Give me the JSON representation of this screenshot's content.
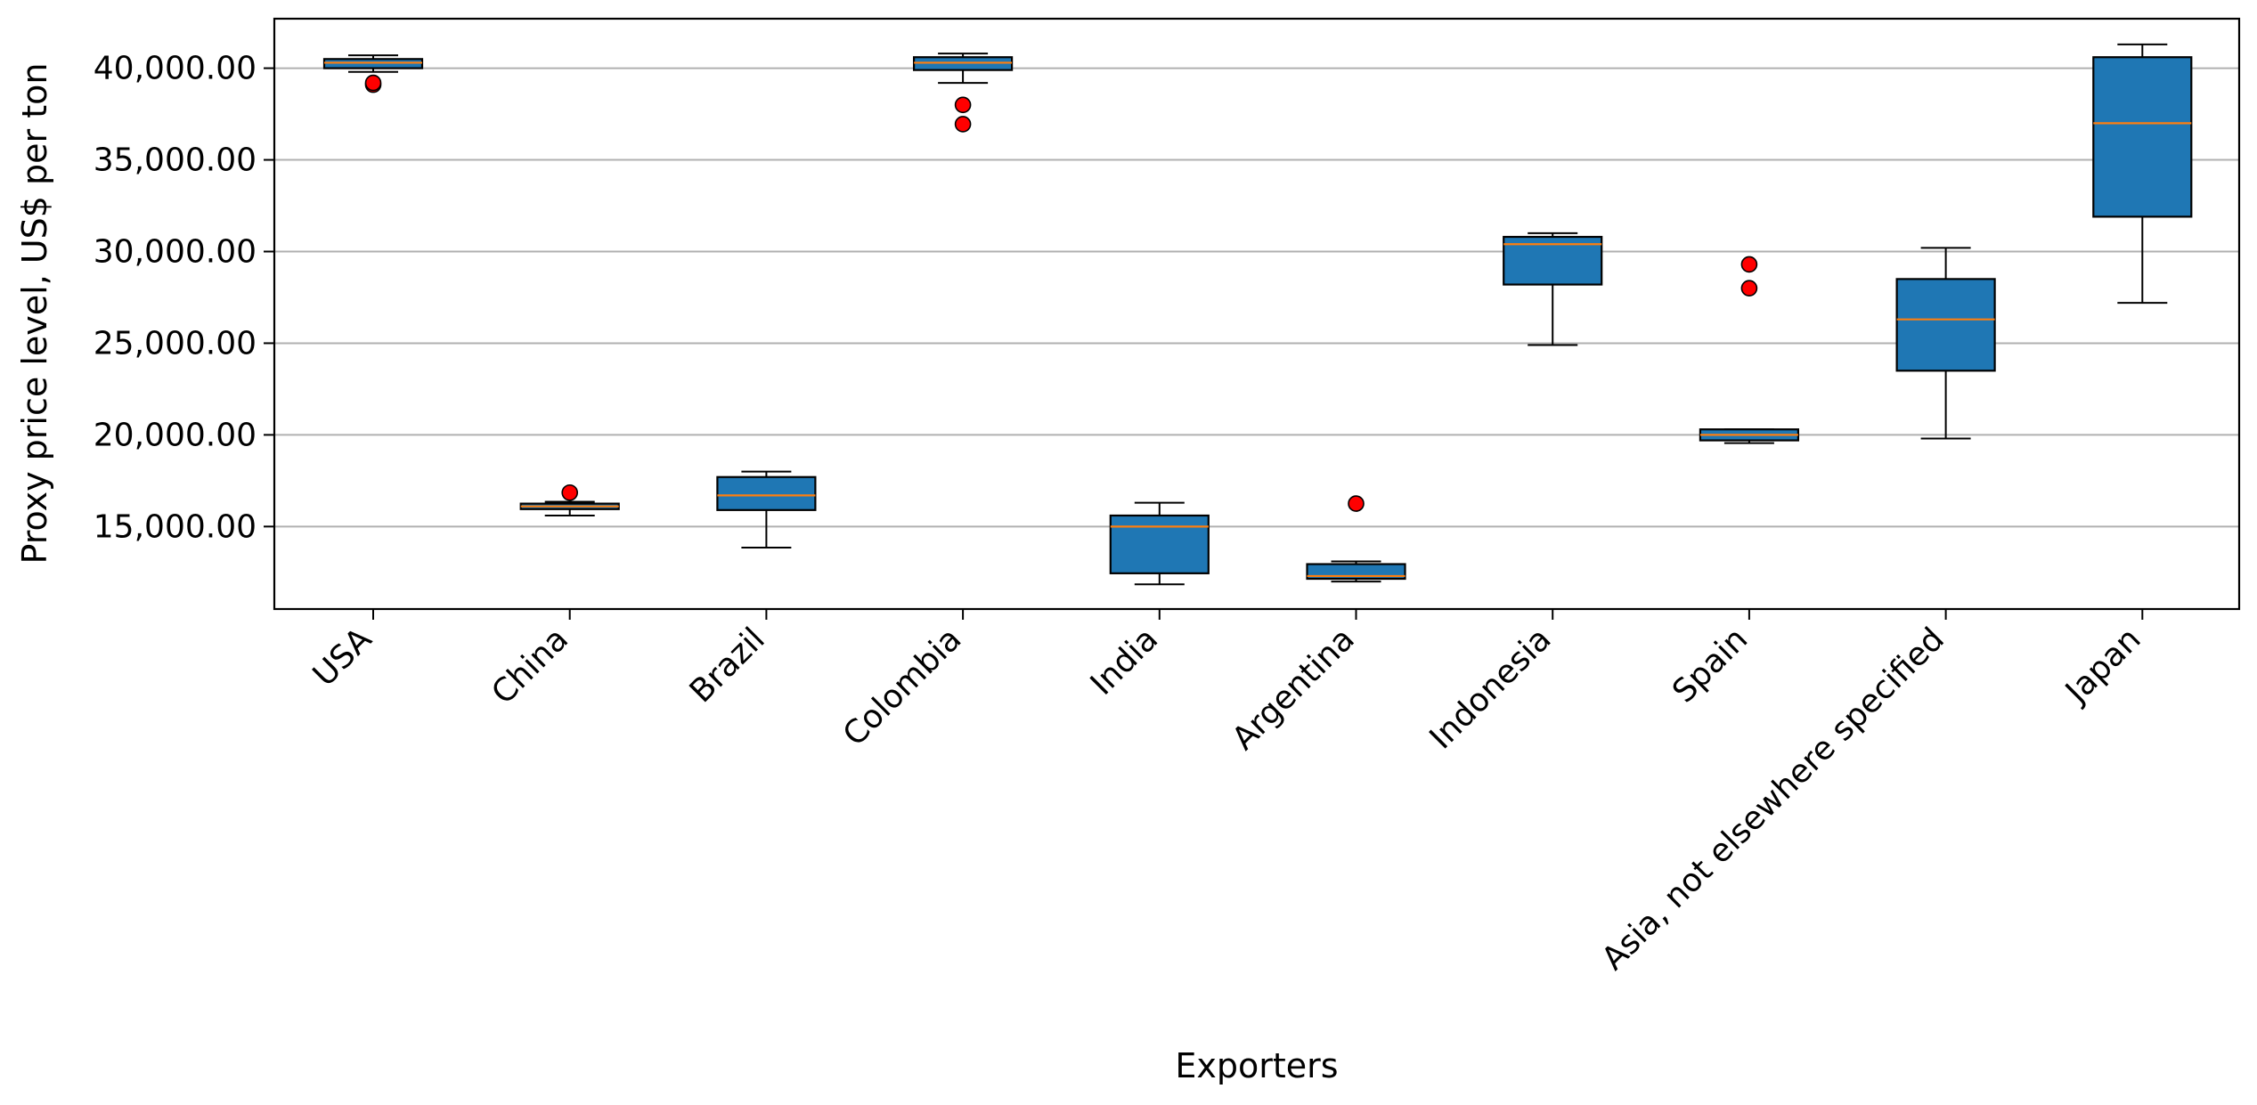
{
  "chart_data": {
    "type": "box",
    "xlabel": "Exporters",
    "ylabel": "Proxy price level, US$ per ton",
    "ylim": [
      10500,
      42700
    ],
    "yticks": [
      15000,
      20000,
      25000,
      30000,
      35000,
      40000
    ],
    "ytick_labels": [
      "15,000.00",
      "20,000.00",
      "25,000.00",
      "30,000.00",
      "35,000.00",
      "40,000.00"
    ],
    "grid": "horizontal",
    "colors": {
      "box": "#1f77b4",
      "median": "#ff7f0e",
      "outlier": "#ff0000",
      "grid": "#b0b0b0"
    },
    "categories": [
      "USA",
      "China",
      "Brazil",
      "Colombia",
      "India",
      "Argentina",
      "Indonesia",
      "Spain",
      "Asia, not elsewhere specified",
      "Japan"
    ],
    "boxes": [
      {
        "category": "USA",
        "whisker_low": 39800,
        "q1": 40000,
        "median": 40300,
        "q3": 40500,
        "whisker_high": 40700,
        "outliers": [
          39100,
          39200
        ]
      },
      {
        "category": "China",
        "whisker_low": 15600,
        "q1": 15950,
        "median": 16100,
        "q3": 16250,
        "whisker_high": 16350,
        "outliers": [
          16850
        ]
      },
      {
        "category": "Brazil",
        "whisker_low": 13850,
        "q1": 15900,
        "median": 16700,
        "q3": 17700,
        "whisker_high": 18000,
        "outliers": []
      },
      {
        "category": "Colombia",
        "whisker_low": 39200,
        "q1": 39900,
        "median": 40300,
        "q3": 40600,
        "whisker_high": 40800,
        "outliers": [
          38000,
          36950
        ]
      },
      {
        "category": "India",
        "whisker_low": 11850,
        "q1": 12450,
        "median": 15000,
        "q3": 15600,
        "whisker_high": 16300,
        "outliers": []
      },
      {
        "category": "Argentina",
        "whisker_low": 12000,
        "q1": 12150,
        "median": 12300,
        "q3": 12950,
        "whisker_high": 13100,
        "outliers": [
          16250
        ]
      },
      {
        "category": "Indonesia",
        "whisker_low": 24900,
        "q1": 28200,
        "median": 30400,
        "q3": 30800,
        "whisker_high": 31000,
        "outliers": []
      },
      {
        "category": "Spain",
        "whisker_low": 19550,
        "q1": 19700,
        "median": 20000,
        "q3": 20300,
        "whisker_high": 20300,
        "outliers": [
          29300,
          28000
        ]
      },
      {
        "category": "Asia, not elsewhere specified",
        "whisker_low": 19800,
        "q1": 23500,
        "median": 26300,
        "q3": 28500,
        "whisker_high": 30200,
        "outliers": []
      },
      {
        "category": "Japan",
        "whisker_low": 27200,
        "q1": 31900,
        "median": 37000,
        "q3": 40600,
        "whisker_high": 41300,
        "outliers": []
      }
    ]
  }
}
